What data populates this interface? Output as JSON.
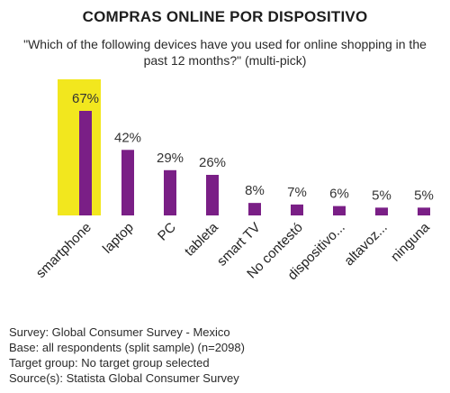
{
  "chart_data": {
    "type": "bar",
    "title": "COMPRAS ONLINE POR DISPOSITIVO",
    "subtitle": "\"Which of the following devices have you used for online shopping in the past 12 months?\" (multi-pick)",
    "categories": [
      "smartphone",
      "laptop",
      "PC",
      "tableta",
      "smart TV",
      "No contestó",
      "dispositivo...",
      "altavoz...",
      "ninguna"
    ],
    "values": [
      67,
      42,
      29,
      26,
      8,
      7,
      6,
      5,
      5
    ],
    "value_labels": [
      "67%",
      "42%",
      "29%",
      "26%",
      "8%",
      "7%",
      "6%",
      "5%",
      "5%"
    ],
    "highlighted_category": "smartphone",
    "ylim": [
      0,
      67
    ],
    "grid": false,
    "colors": {
      "bar": "#7a1f86",
      "highlight": "#f2e71e"
    }
  },
  "footer": {
    "survey": "Survey: Global Consumer Survey - Mexico",
    "base": "Base: all respondents (split sample) (n=2098)",
    "target": "Target group: No target group selected",
    "source": "Source(s): Statista Global Consumer Survey"
  }
}
